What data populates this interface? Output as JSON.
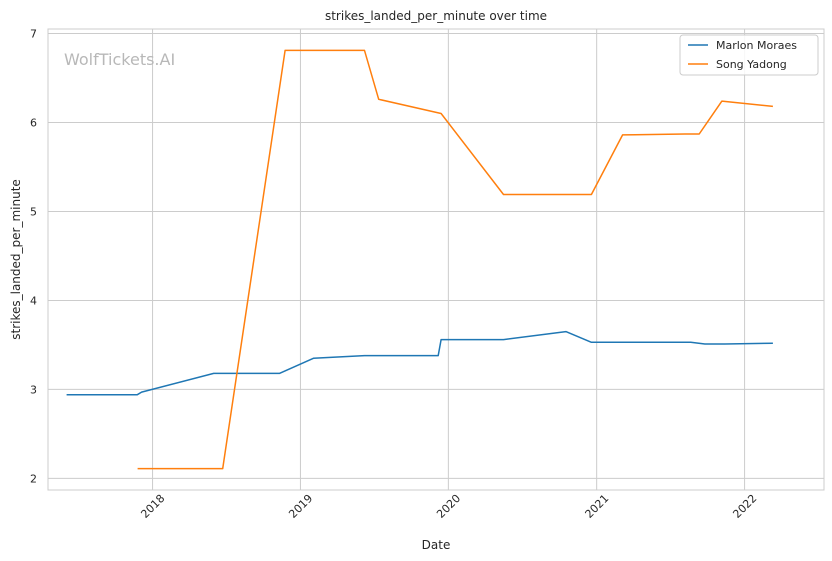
{
  "chart_data": {
    "type": "line",
    "title": "strikes_landed_per_minute over time",
    "xlabel": "Date",
    "ylabel": "strikes_landed_per_minute",
    "watermark": "WolfTickets.AI",
    "xlim": [
      "2017-04-18",
      "2022-07-16"
    ],
    "ylim": [
      1.87,
      7.05
    ],
    "x_ticks": [
      "2018",
      "2019",
      "2020",
      "2021",
      "2022"
    ],
    "y_ticks": [
      2,
      3,
      4,
      5,
      6,
      7
    ],
    "grid": true,
    "legend_position": "top-right",
    "series": [
      {
        "name": "Marlon Moraes",
        "color": "#1f77b4",
        "points": [
          [
            "2017-06-03",
            2.94
          ],
          [
            "2017-11-24",
            2.94
          ],
          [
            "2017-12-05",
            2.97
          ],
          [
            "2018-06-01",
            3.18
          ],
          [
            "2018-11-10",
            3.18
          ],
          [
            "2019-02-02",
            3.35
          ],
          [
            "2019-06-08",
            3.38
          ],
          [
            "2019-12-07",
            3.38
          ],
          [
            "2019-12-14",
            3.56
          ],
          [
            "2020-05-16",
            3.56
          ],
          [
            "2020-10-17",
            3.65
          ],
          [
            "2020-12-19",
            3.53
          ],
          [
            "2021-08-21",
            3.53
          ],
          [
            "2021-09-25",
            3.51
          ],
          [
            "2021-11-13",
            3.51
          ],
          [
            "2022-03-12",
            3.52
          ]
        ]
      },
      {
        "name": "Song Yadong",
        "color": "#ff7f0e",
        "points": [
          [
            "2017-11-25",
            2.11
          ],
          [
            "2018-06-23",
            2.11
          ],
          [
            "2018-11-24",
            6.81
          ],
          [
            "2019-06-08",
            6.81
          ],
          [
            "2019-07-13",
            6.26
          ],
          [
            "2019-12-14",
            6.1
          ],
          [
            "2020-05-16",
            5.19
          ],
          [
            "2020-12-19",
            5.19
          ],
          [
            "2021-03-06",
            5.86
          ],
          [
            "2021-08-07",
            5.87
          ],
          [
            "2021-09-11",
            5.87
          ],
          [
            "2021-11-06",
            6.24
          ],
          [
            "2022-03-12",
            6.18
          ]
        ]
      }
    ]
  }
}
